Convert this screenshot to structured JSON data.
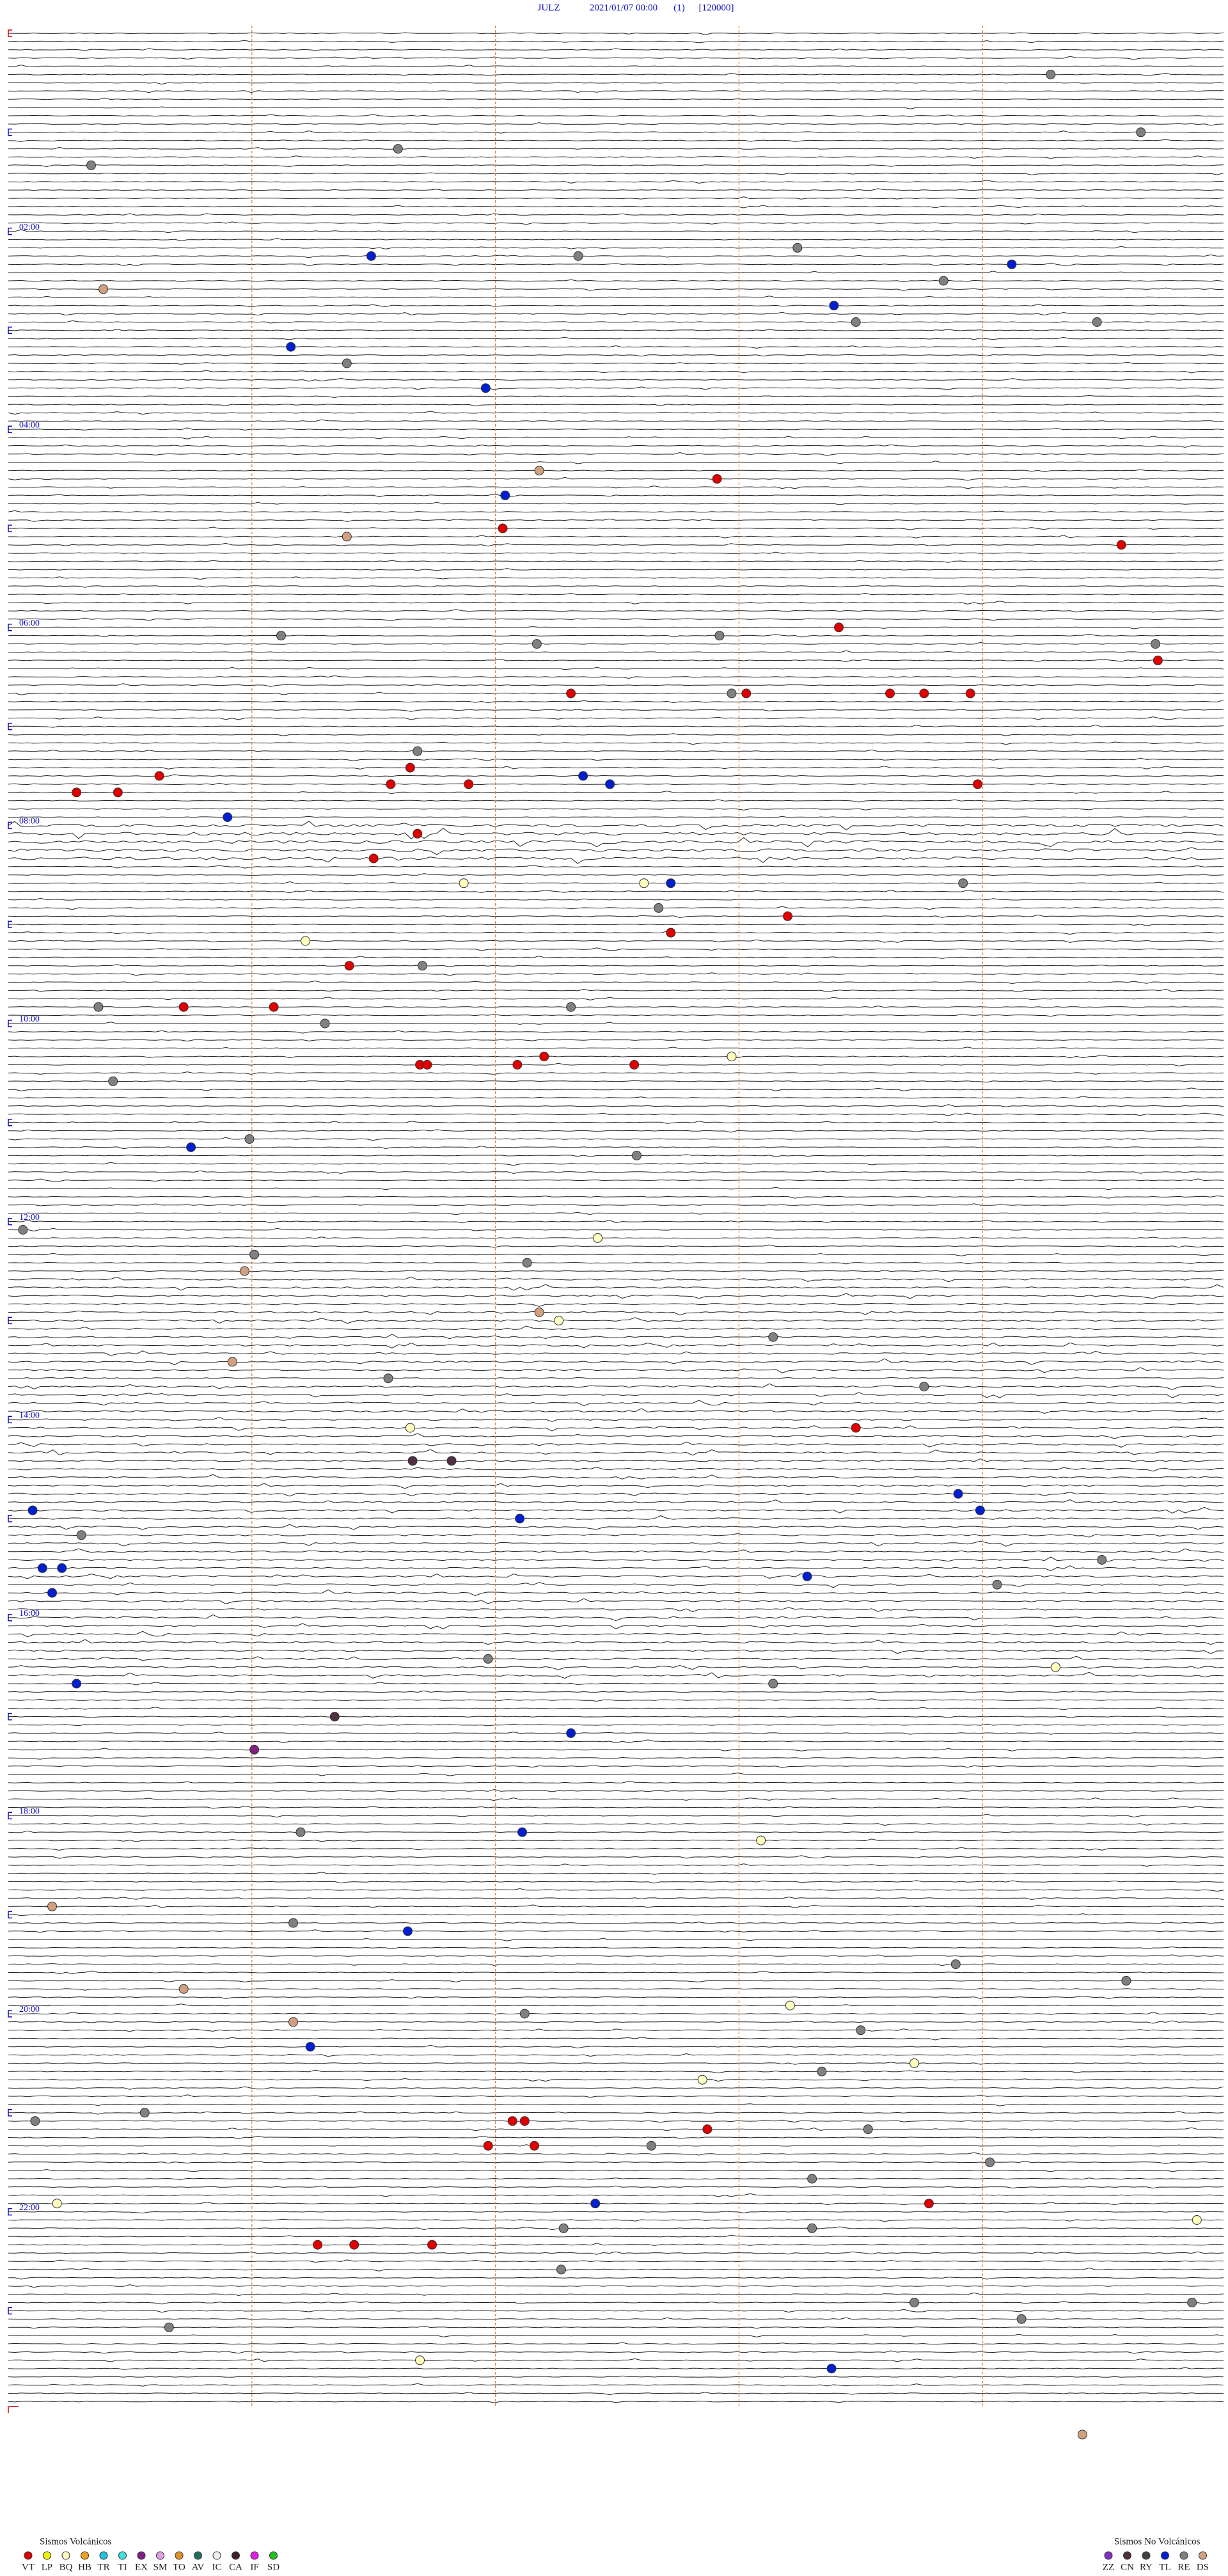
{
  "header": {
    "station": "JULZ",
    "date": "2021/01/07 00:00",
    "channel": "(1)",
    "scale": "[120000]"
  },
  "time_labels": [
    "02:00",
    "04:00",
    "06:00",
    "08:00",
    "10:00",
    "12:00",
    "14:00",
    "16:00",
    "18:00",
    "20:00",
    "22:00"
  ],
  "legend": {
    "volcanic_title": "Sismos Volcánicos",
    "volcanic": [
      {
        "code": "VT",
        "color": "#e00000"
      },
      {
        "code": "LP",
        "color": "#f0f000"
      },
      {
        "code": "BQ",
        "color": "#ffffc0"
      },
      {
        "code": "HB",
        "color": "#f0a020"
      },
      {
        "code": "TR",
        "color": "#20c0e0"
      },
      {
        "code": "TI",
        "color": "#40e0e0"
      },
      {
        "code": "EX",
        "color": "#802080"
      },
      {
        "code": "SM",
        "color": "#e0a0e0"
      },
      {
        "code": "TO",
        "color": "#e09030"
      },
      {
        "code": "AV",
        "color": "#207060"
      },
      {
        "code": "IC",
        "color": "#f0f0f0"
      },
      {
        "code": "CA",
        "color": "#402030"
      },
      {
        "code": "IF",
        "color": "#e020e0"
      },
      {
        "code": "SD",
        "color": "#20c020"
      }
    ],
    "non_volcanic_title": "Sismos No Volcánicos",
    "non_volcanic": [
      {
        "code": "ZZ",
        "color": "#8030c0"
      },
      {
        "code": "CN",
        "color": "#503040"
      },
      {
        "code": "RY",
        "color": "#404040"
      },
      {
        "code": "TL",
        "color": "#0020d0"
      },
      {
        "code": "RE",
        "color": "#808080"
      },
      {
        "code": "DS",
        "color": "#d0a080"
      }
    ]
  },
  "events": [
    [
      5,
      4.28,
      "RE"
    ],
    [
      12,
      4.65,
      "RE"
    ],
    [
      14,
      1.6,
      "RE"
    ],
    [
      16,
      0.34,
      "RE"
    ],
    [
      26,
      3.24,
      "RE"
    ],
    [
      27,
      1.49,
      "TL"
    ],
    [
      27,
      2.34,
      "RE"
    ],
    [
      28,
      4.12,
      "TL"
    ],
    [
      30,
      3.84,
      "RE"
    ],
    [
      31,
      0.39,
      "DS"
    ],
    [
      33,
      3.39,
      "TL"
    ],
    [
      35,
      3.48,
      "RE"
    ],
    [
      35,
      4.47,
      "RE"
    ],
    [
      38,
      1.16,
      "TL"
    ],
    [
      40,
      1.39,
      "RE"
    ],
    [
      43,
      1.96,
      "TL"
    ],
    [
      53,
      2.18,
      "DS"
    ],
    [
      54,
      2.91,
      "VT"
    ],
    [
      56,
      2.04,
      "TL"
    ],
    [
      60,
      2.03,
      "VT"
    ],
    [
      61,
      1.39,
      "DS"
    ],
    [
      62,
      4.57,
      "VT"
    ],
    [
      72,
      3.41,
      "VT"
    ],
    [
      73,
      1.12,
      "RE"
    ],
    [
      73,
      2.92,
      "RE"
    ],
    [
      74,
      2.17,
      "RE"
    ],
    [
      74,
      4.71,
      "RE"
    ],
    [
      76,
      4.72,
      "VT"
    ],
    [
      80,
      2.31,
      "VT"
    ],
    [
      80,
      2.97,
      "RE"
    ],
    [
      80,
      3.03,
      "VT"
    ],
    [
      80,
      3.62,
      "VT"
    ],
    [
      80,
      3.76,
      "VT"
    ],
    [
      80,
      3.95,
      "VT"
    ],
    [
      87,
      1.68,
      "RE"
    ],
    [
      89,
      1.65,
      "VT"
    ],
    [
      90,
      0.62,
      "VT"
    ],
    [
      90,
      2.36,
      "TL"
    ],
    [
      91,
      1.57,
      "VT"
    ],
    [
      91,
      1.89,
      "VT"
    ],
    [
      91,
      2.47,
      "TL"
    ],
    [
      91,
      3.98,
      "VT"
    ],
    [
      92,
      0.28,
      "VT"
    ],
    [
      92,
      0.45,
      "VT"
    ],
    [
      95,
      0.9,
      "TL"
    ],
    [
      97,
      1.68,
      "VT"
    ],
    [
      100,
      1.5,
      "VT"
    ],
    [
      103,
      1.87,
      "BQ"
    ],
    [
      103,
      2.61,
      "BQ"
    ],
    [
      103,
      2.72,
      "TL"
    ],
    [
      103,
      3.92,
      "RE"
    ],
    [
      106,
      2.67,
      "RE"
    ],
    [
      107,
      3.2,
      "VT"
    ],
    [
      109,
      2.72,
      "VT"
    ],
    [
      110,
      1.22,
      "BQ"
    ],
    [
      113,
      1.4,
      "VT"
    ],
    [
      113,
      1.7,
      "RE"
    ],
    [
      118,
      0.37,
      "RE"
    ],
    [
      118,
      0.72,
      "VT"
    ],
    [
      118,
      1.09,
      "VT"
    ],
    [
      118,
      2.31,
      "RE"
    ],
    [
      120,
      1.3,
      "RE"
    ],
    [
      124,
      2.97,
      "BQ"
    ],
    [
      124,
      2.2,
      "VT"
    ],
    [
      125,
      1.69,
      "VT"
    ],
    [
      125,
      1.72,
      "VT"
    ],
    [
      125,
      2.09,
      "VT"
    ],
    [
      125,
      2.57,
      "VT"
    ],
    [
      127,
      0.43,
      "RE"
    ],
    [
      134,
      0.99,
      "RE"
    ],
    [
      135,
      0.75,
      "TL"
    ],
    [
      136,
      2.58,
      "RE"
    ],
    [
      145,
      0.06,
      "RE"
    ],
    [
      146,
      2.42,
      "BQ"
    ],
    [
      148,
      1.01,
      "RE"
    ],
    [
      149,
      2.13,
      "RE"
    ],
    [
      150,
      0.97,
      "DS"
    ],
    [
      155,
      2.18,
      "DS"
    ],
    [
      156,
      2.26,
      "BQ"
    ],
    [
      158,
      3.14,
      "RE"
    ],
    [
      161,
      0.92,
      "DS"
    ],
    [
      163,
      1.56,
      "RE"
    ],
    [
      164,
      3.76,
      "RE"
    ],
    [
      169,
      3.48,
      "VT"
    ],
    [
      169,
      1.65,
      "BQ"
    ],
    [
      173,
      1.66,
      "CN"
    ],
    [
      173,
      1.82,
      "CN"
    ],
    [
      177,
      3.9,
      "TL"
    ],
    [
      179,
      0.1,
      "TL"
    ],
    [
      179,
      3.99,
      "TL"
    ],
    [
      180,
      2.1,
      "TL"
    ],
    [
      182,
      0.3,
      "RE"
    ],
    [
      185,
      4.49,
      "RE"
    ],
    [
      186,
      0.14,
      "TL"
    ],
    [
      186,
      0.22,
      "TL"
    ],
    [
      187,
      3.28,
      "TL"
    ],
    [
      188,
      4.06,
      "RE"
    ],
    [
      189,
      0.18,
      "TL"
    ],
    [
      197,
      1.97,
      "RE"
    ],
    [
      198,
      4.3,
      "BQ"
    ],
    [
      200,
      0.28,
      "TL"
    ],
    [
      200,
      3.14,
      "RE"
    ],
    [
      204,
      1.34,
      "CN"
    ],
    [
      206,
      2.31,
      "TL"
    ],
    [
      208,
      1.01,
      "EX"
    ],
    [
      218,
      2.11,
      "TL"
    ],
    [
      218,
      1.2,
      "RE"
    ],
    [
      219,
      3.09,
      "BQ"
    ],
    [
      227,
      0.18,
      "DS"
    ],
    [
      229,
      1.17,
      "RE"
    ],
    [
      230,
      1.64,
      "TL"
    ],
    [
      234,
      3.89,
      "RE"
    ],
    [
      236,
      4.59,
      "RE"
    ],
    [
      237,
      0.72,
      "DS"
    ],
    [
      239,
      3.21,
      "BQ"
    ],
    [
      240,
      2.12,
      "RE"
    ],
    [
      241,
      1.17,
      "DS"
    ],
    [
      242,
      3.5,
      "RE"
    ],
    [
      244,
      1.24,
      "TL"
    ],
    [
      246,
      3.72,
      "BQ"
    ],
    [
      247,
      3.34,
      "RE"
    ],
    [
      248,
      2.85,
      "BQ"
    ],
    [
      252,
      0.56,
      "RE"
    ],
    [
      253,
      0.11,
      "RE"
    ],
    [
      253,
      2.07,
      "VT"
    ],
    [
      253,
      2.12,
      "VT"
    ],
    [
      254,
      3.53,
      "RE"
    ],
    [
      254,
      2.87,
      "VT"
    ],
    [
      256,
      1.97,
      "VT"
    ],
    [
      256,
      2.16,
      "VT"
    ],
    [
      256,
      2.64,
      "RE"
    ],
    [
      258,
      4.03,
      "RE"
    ],
    [
      260,
      3.3,
      "RE"
    ],
    [
      263,
      3.78,
      "VT"
    ],
    [
      263,
      2.41,
      "TL"
    ],
    [
      263,
      0.2,
      "BQ"
    ],
    [
      265,
      4.88,
      "BQ"
    ],
    [
      266,
      2.28,
      "RE"
    ],
    [
      266,
      3.3,
      "RE"
    ],
    [
      268,
      1.27,
      "VT"
    ],
    [
      268,
      1.42,
      "VT"
    ],
    [
      268,
      1.74,
      "VT"
    ],
    [
      271,
      2.27,
      "RE"
    ],
    [
      275,
      3.72,
      "RE"
    ],
    [
      275,
      4.86,
      "RE"
    ],
    [
      277,
      4.16,
      "RE"
    ],
    [
      278,
      0.66,
      "RE"
    ],
    [
      282,
      1.69,
      "BQ"
    ],
    [
      283,
      3.38,
      "TL"
    ],
    [
      291,
      4.41,
      "DS"
    ]
  ]
}
